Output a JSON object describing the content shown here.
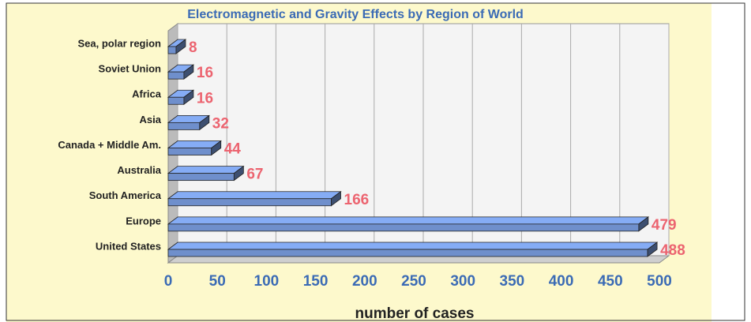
{
  "chart_data": {
    "type": "bar",
    "orientation": "horizontal",
    "title": "Electromagnetic and Gravity Effects by Region of World",
    "x_label": "number of cases",
    "categories": [
      "Sea, polar region",
      "Soviet Union",
      "Africa",
      "Asia",
      "Canada + Middle Am.",
      "Australia",
      "South America",
      "Europe",
      "United States"
    ],
    "values": [
      8,
      16,
      16,
      32,
      44,
      67,
      166,
      479,
      488
    ],
    "color": "#6f8fcc",
    "label_color": "#ec6470",
    "xlim": [
      0,
      500
    ],
    "xticks": [
      0,
      50,
      100,
      150,
      200,
      250,
      300,
      350,
      400,
      450,
      500
    ],
    "grid": true
  }
}
